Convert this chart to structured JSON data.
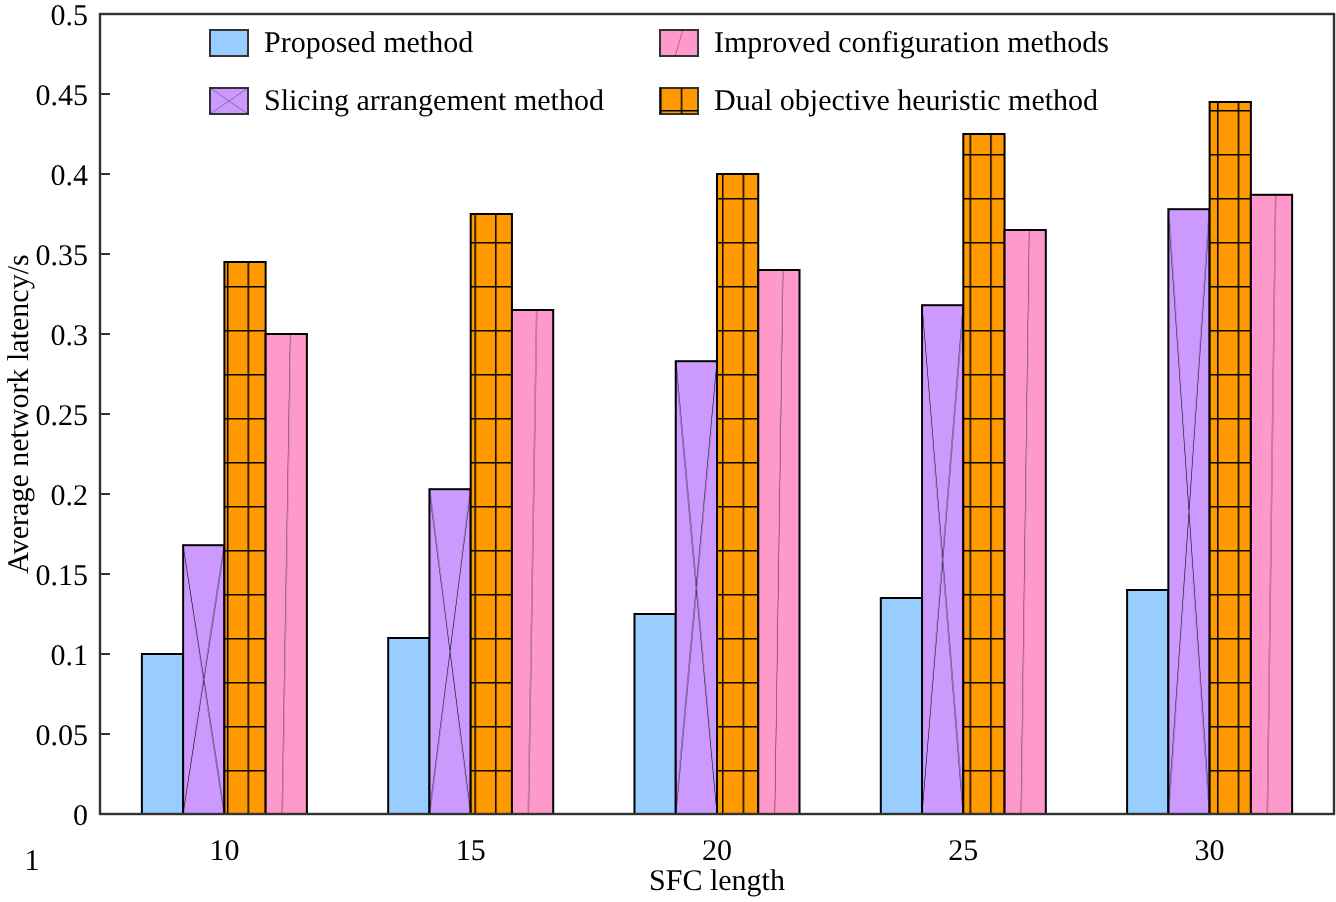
{
  "chart_data": {
    "type": "bar",
    "xlabel": "SFC length",
    "ylabel": "Average network latency/s",
    "categories": [
      "10",
      "15",
      "20",
      "25",
      "30"
    ],
    "series": [
      {
        "name": "Proposed method",
        "color": "#99ccff",
        "values": [
          0.1,
          0.11,
          0.125,
          0.135,
          0.14
        ]
      },
      {
        "name": "Slicing arrangement method",
        "color": "#cc99ff",
        "values": [
          0.168,
          0.203,
          0.283,
          0.318,
          0.378
        ]
      },
      {
        "name": "Dual objective heuristic method",
        "color": "#ff9900",
        "values": [
          0.345,
          0.375,
          0.4,
          0.425,
          0.445
        ]
      },
      {
        "name": "Improved configuration methods",
        "color": "#ff99cc",
        "values": [
          0.3,
          0.315,
          0.34,
          0.365,
          0.387
        ]
      }
    ],
    "ylim": [
      0,
      0.5
    ],
    "yticks": [
      0,
      0.05,
      0.1,
      0.15,
      0.2,
      0.25,
      0.3,
      0.35,
      0.4,
      0.45,
      0.5
    ],
    "grid": false,
    "legend": "top",
    "annotations": [
      "1"
    ]
  }
}
